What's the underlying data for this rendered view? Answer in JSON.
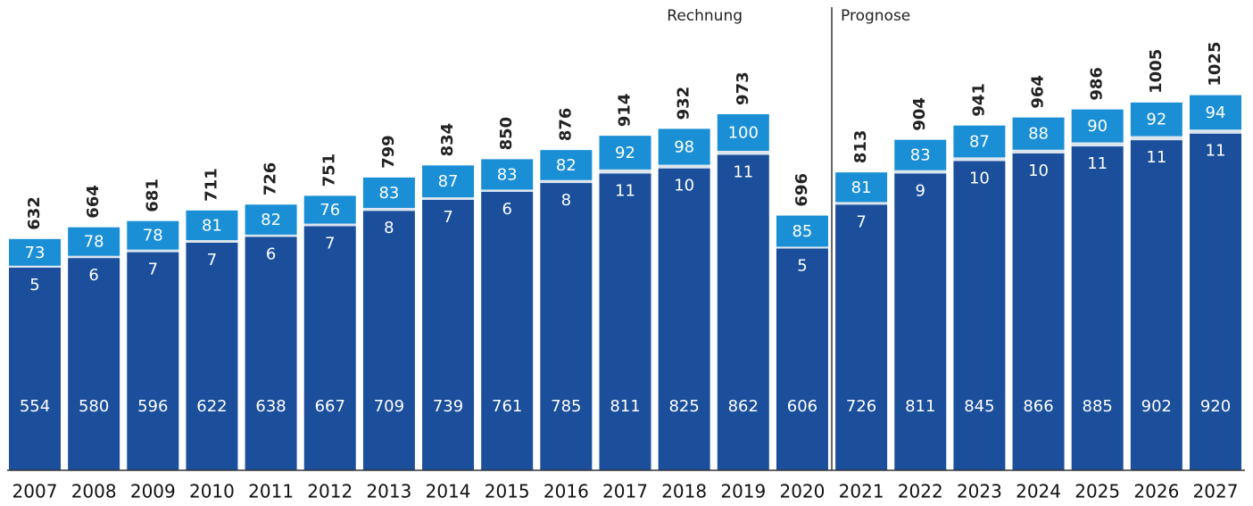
{
  "chart_data": {
    "type": "stacked_bar",
    "categories": [
      "2007",
      "2008",
      "2009",
      "2010",
      "2011",
      "2012",
      "2013",
      "2014",
      "2015",
      "2016",
      "2017",
      "2018",
      "2019",
      "2020",
      "2021",
      "2022",
      "2023",
      "2024",
      "2025",
      "2026",
      "2027"
    ],
    "series": [
      {
        "color": "#1b4f9b",
        "values": [
          554,
          580,
          596,
          622,
          638,
          667,
          709,
          739,
          761,
          785,
          811,
          825,
          862,
          606,
          726,
          811,
          845,
          866,
          885,
          902,
          920
        ]
      },
      {
        "color": "#dbe5ee",
        "values": [
          5,
          6,
          7,
          7,
          6,
          7,
          8,
          7,
          6,
          8,
          11,
          10,
          11,
          5,
          7,
          9,
          10,
          10,
          11,
          11,
          11
        ]
      },
      {
        "color": "#1a8fd5",
        "values": [
          73,
          78,
          78,
          81,
          82,
          76,
          83,
          87,
          83,
          82,
          92,
          98,
          100,
          85,
          81,
          83,
          87,
          88,
          90,
          92,
          94
        ]
      }
    ],
    "totals": [
      632,
      664,
      681,
      711,
      726,
      751,
      799,
      834,
      850,
      876,
      914,
      932,
      973,
      696,
      813,
      904,
      941,
      964,
      986,
      1005,
      1025
    ],
    "annotations": [
      {
        "text": "Rechnung"
      },
      {
        "text": "Prognose"
      }
    ],
    "forecast_start": "2021",
    "ylim": [
      0,
      1285
    ]
  }
}
